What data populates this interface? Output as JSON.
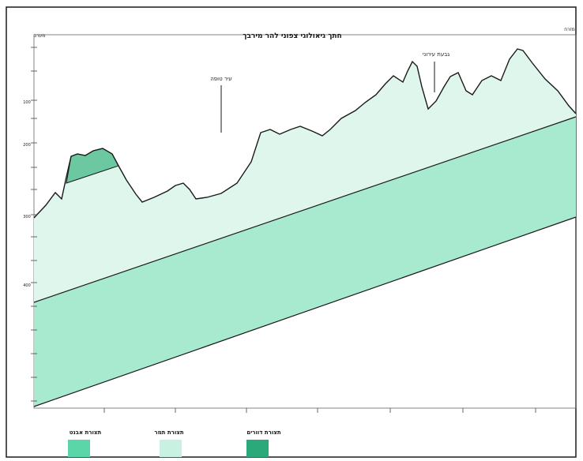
{
  "diagram": {
    "title": "חתך גיאולוגי צפוני להר מירבך",
    "left_label": "מערב",
    "right_label": "מזרח",
    "annotations": [
      {
        "id": "peak-1",
        "text": "עיר טופה"
      },
      {
        "id": "peak-2",
        "text": "גבעת עירוני"
      }
    ],
    "y_tick_labels": [
      "400",
      "300",
      "200",
      "100"
    ],
    "legend": [
      {
        "id": "legend-1",
        "label": "תצורת אבנט",
        "color": "#5ad6a8"
      },
      {
        "id": "legend-2",
        "label": "תצורת תמר",
        "color": "#c9f1e1"
      },
      {
        "id": "legend-3",
        "label": "תצורת דוורים",
        "color": "#2ca97b"
      }
    ],
    "colors": {
      "lower_band": "#a8ead0",
      "upper_layer": "#dff6ec",
      "cap": "#6cc8a0",
      "line": "#1a1a1a",
      "frame": "#1a1a1a"
    }
  }
}
